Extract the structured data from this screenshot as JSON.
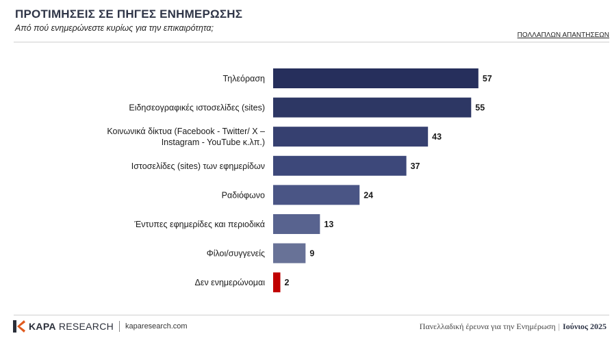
{
  "header": {
    "title": "ΠΡΟΤΙΜΗΣΕΙΣ ΣΕ ΠΗΓΕΣ ΕΝΗΜΕΡΩΣΗΣ",
    "subtitle": "Από πού ενημερώνεστε κυρίως για την επικαιρότητα;",
    "note": "ΠΟΛΛΑΠΛΩΝ ΑΠΑΝΤΗΣΕΩΝ"
  },
  "chart_data": {
    "type": "bar",
    "orientation": "horizontal",
    "title": "ΠΡΟΤΙΜΗΣΕΙΣ ΣΕ ΠΗΓΕΣ ΕΝΗΜΕΡΩΣΗΣ",
    "xlim": [
      0,
      60
    ],
    "grid": false,
    "legend": "none",
    "categories": [
      [
        "Τηλεόραση"
      ],
      [
        "Ειδησεογραφικές ιστοσελίδες (sites)"
      ],
      [
        "Κοινωνικά δίκτυα (Facebook - Twitter/ X –",
        "Instagram - YouTube κ.λπ.)"
      ],
      [
        "Ιστοσελίδες (sites) των εφημερίδων"
      ],
      [
        "Ραδιόφωνο"
      ],
      [
        "Έντυπες εφημερίδες και περιοδικά"
      ],
      [
        "Φίλοι/συγγενείς"
      ],
      [
        "Δεν ενημερώνομαι"
      ]
    ],
    "values": [
      57,
      55,
      43,
      37,
      24,
      13,
      9,
      2
    ],
    "colors": [
      "#262f5c",
      "#2d3764",
      "#364070",
      "#3d487a",
      "#4a5585",
      "#58638f",
      "#687297",
      "#c00000"
    ]
  },
  "footer": {
    "brand_bold": "KAPA",
    "brand_light": "RESEARCH",
    "site": "kaparesearch.com",
    "survey": "Πανελλαδική έρευνα για την Ενημέρωση",
    "date": "Ιούνιος 2025"
  }
}
